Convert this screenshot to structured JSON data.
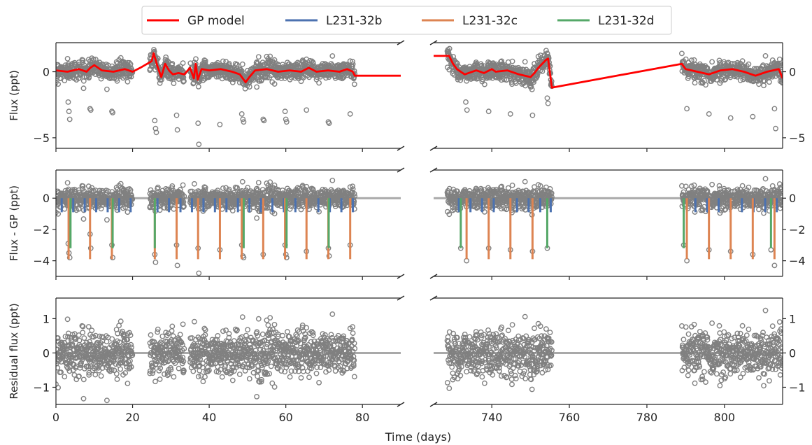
{
  "legend": {
    "items": [
      {
        "label": "GP model",
        "color": "#ff0000"
      },
      {
        "label": "L231-32b",
        "color": "#4c72b0"
      },
      {
        "label": "L231-32c",
        "color": "#dd8452"
      },
      {
        "label": "L231-32d",
        "color": "#55a868"
      }
    ]
  },
  "xlabel": "Time (days)",
  "colors": {
    "points": "#808080",
    "baseline": "#a9a9a9",
    "axes": "#262626"
  },
  "chart_data": {
    "type": "scatter",
    "broken_x_axis": true,
    "x_segments": [
      {
        "xlim": [
          0,
          90
        ],
        "ticks": [
          0,
          20,
          40,
          60,
          80
        ],
        "tick_labels": [
          "0",
          "20",
          "40",
          "60",
          "80"
        ]
      },
      {
        "xlim": [
          725,
          815
        ],
        "ticks": [
          740,
          760,
          780,
          800
        ],
        "tick_labels": [
          "740",
          "760",
          "780",
          "800"
        ]
      }
    ],
    "data_windows": [
      [
        0,
        20
      ],
      [
        24.5,
        33.5
      ],
      [
        35,
        78
      ],
      [
        728.5,
        755.5
      ],
      [
        789,
        815
      ]
    ],
    "panels": [
      {
        "id": "flux",
        "ylabel": "Flux (ppt)",
        "ylim": [
          -5.8,
          2.2
        ],
        "yticks": [
          -5,
          0
        ],
        "ytick_labels": [
          "−5",
          "0"
        ],
        "gp_model": {
          "left_x": [
            0,
            3,
            6,
            8,
            9,
            10,
            12,
            15,
            18,
            20,
            22,
            25,
            25.5,
            26.5,
            27.5,
            28.5,
            29.5,
            30.5,
            32,
            33.5,
            35,
            36,
            36.5,
            37,
            38,
            40,
            43,
            46,
            48,
            49.5,
            50.5,
            52,
            55,
            58,
            61,
            64,
            66,
            68,
            71,
            74,
            76,
            77.5,
            78,
            80,
            85,
            90
          ],
          "left_y": [
            0.1,
            0.0,
            0.2,
            0.0,
            0.3,
            0.5,
            0.1,
            0.0,
            0.2,
            0.0,
            0.3,
            0.8,
            1.4,
            0.4,
            -0.4,
            0.6,
            0.1,
            -0.2,
            -0.1,
            -0.2,
            0.3,
            -0.5,
            0.6,
            -0.6,
            0.2,
            0.1,
            0.2,
            0.0,
            -0.2,
            -0.8,
            -0.4,
            0.1,
            0.2,
            0.0,
            0.1,
            0.0,
            0.3,
            0.0,
            0.1,
            0.0,
            0.2,
            0.0,
            -0.3,
            -0.3,
            -0.3,
            -0.3
          ],
          "right_x": [
            725,
            729,
            730,
            731,
            733,
            736,
            738,
            740,
            741,
            744,
            747,
            750,
            751,
            752,
            754,
            754.5,
            755.5,
            789,
            790,
            793,
            796,
            799,
            802,
            805,
            808,
            811,
            814,
            815
          ],
          "right_y": [
            1.2,
            1.2,
            0.6,
            0.2,
            -0.2,
            0.1,
            -0.1,
            0.2,
            0.0,
            0.1,
            -0.2,
            -0.4,
            -0.1,
            0.3,
            0.9,
            1.0,
            -1.2,
            0.6,
            0.2,
            0.0,
            -0.2,
            0.1,
            0.2,
            0.0,
            -0.3,
            0.0,
            0.2,
            -0.5
          ]
        }
      },
      {
        "id": "detrended",
        "ylabel": "Flux - GP (ppt)",
        "ylim": [
          -5.0,
          1.8
        ],
        "yticks": [
          -4,
          -2,
          0
        ],
        "ytick_labels": [
          "−4",
          "−2",
          "0"
        ]
      },
      {
        "id": "residual",
        "ylabel": "Residual flux (ppt)",
        "ylim": [
          -1.5,
          1.6
        ],
        "yticks": [
          -1,
          0,
          1
        ],
        "ytick_labels": [
          "−1",
          "0",
          "1"
        ]
      }
    ],
    "transits": [
      {
        "planet": "L231-32b",
        "depth": -0.9,
        "times": [
          1.5,
          4.5,
          7.5,
          10.5,
          13.5,
          16.5,
          19.5,
          26.5,
          29.5,
          32.5,
          35.5,
          38.5,
          41.5,
          44.5,
          47.5,
          50.5,
          53.5,
          56.5,
          59.5,
          62.5,
          65.5,
          68.5,
          71.5,
          74.5,
          77.5,
          731.5,
          734.5,
          737.5,
          740.5,
          746.5,
          749.5,
          752.5,
          755.2,
          789.5,
          792.5,
          795.5,
          798.5,
          801.5,
          804.5,
          807.5,
          810.5,
          813.5
        ]
      },
      {
        "planet": "L231-32c",
        "depth": -3.9,
        "times": [
          3.3,
          8.9,
          14.6,
          25.8,
          31.5,
          37.1,
          42.8,
          48.5,
          54.1,
          59.8,
          65.4,
          71.1,
          76.8,
          733.5,
          739.2,
          744.8,
          750.5,
          790.3,
          796.0,
          801.6,
          807.3,
          812.9
        ]
      },
      {
        "planet": "L231-32d",
        "depth": -3.2,
        "times": [
          3.8,
          14.8,
          25.8,
          49.0,
          60.2,
          71.2,
          732.0,
          754.3,
          789.5,
          812.0
        ]
      }
    ],
    "outliers": {
      "flux": {
        "x": [
          3.2,
          3.4,
          3.6,
          8.9,
          9.1,
          14.6,
          14.8,
          25.8,
          26.0,
          26.2,
          31.5,
          31.7,
          37.1,
          37.3,
          42.8,
          48.5,
          48.8,
          49.0,
          54.1,
          54.3,
          59.8,
          60.0,
          60.2,
          65.4,
          71.1,
          71.3,
          76.8,
          733.3,
          733.6,
          739.2,
          744.8,
          750.5,
          754.3,
          754.5,
          790.3,
          796.0,
          801.6,
          807.3,
          812.9,
          813.2
        ],
        "y": [
          -2.3,
          -3.0,
          -3.6,
          -2.8,
          -2.9,
          -3.0,
          -3.1,
          -3.7,
          -4.3,
          -4.6,
          -3.3,
          -4.4,
          -3.9,
          -5.5,
          -4.0,
          -3.2,
          -3.6,
          -3.8,
          -3.6,
          -3.7,
          -3.0,
          -3.6,
          -3.8,
          -2.9,
          -3.8,
          -3.9,
          -3.2,
          -2.3,
          -2.9,
          -3.0,
          -3.2,
          -3.3,
          -2.0,
          -2.4,
          -2.8,
          -3.2,
          -3.5,
          -3.4,
          -2.8,
          -4.3
        ]
      },
      "detrended": {
        "x": [
          3.2,
          3.4,
          3.6,
          8.9,
          9.1,
          14.6,
          14.8,
          25.8,
          26.0,
          31.5,
          31.7,
          37.1,
          37.3,
          42.8,
          48.5,
          48.8,
          49.0,
          54.1,
          59.8,
          60.0,
          60.2,
          65.4,
          71.1,
          71.3,
          76.8,
          732.0,
          733.5,
          739.2,
          744.8,
          750.5,
          754.3,
          789.5,
          790.3,
          796.0,
          801.6,
          807.3,
          812.0,
          812.9
        ],
        "y": [
          -2.9,
          -3.5,
          -3.8,
          -2.3,
          -3.2,
          -3.0,
          -3.8,
          -3.6,
          -4.1,
          -3.0,
          -4.3,
          -3.2,
          -4.8,
          -3.3,
          -3.0,
          -3.7,
          -3.8,
          -3.6,
          -3.0,
          -3.6,
          -3.8,
          -3.4,
          -3.2,
          -3.7,
          -3.0,
          -3.2,
          -4.0,
          -3.2,
          -3.3,
          -3.4,
          -3.2,
          -3.0,
          -4.0,
          -3.3,
          -3.4,
          -3.6,
          -3.3,
          -4.3
        ]
      }
    }
  }
}
